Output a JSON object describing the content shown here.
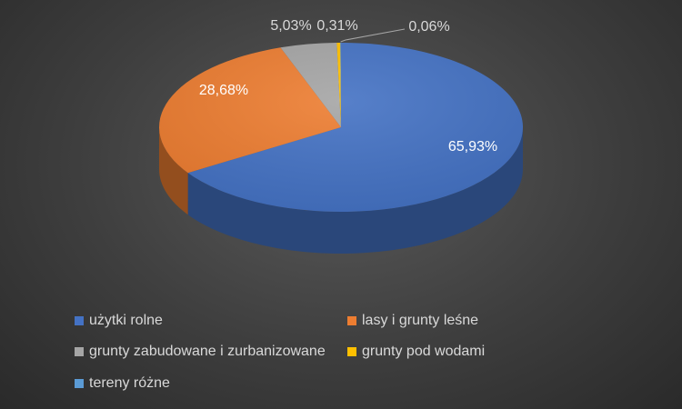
{
  "chart_data": {
    "type": "pie",
    "categories": [
      "użytki rolne",
      "lasy i grunty leśne",
      "grunty zabudowane i zurbanizowane",
      "grunty pod wodami",
      "tereny różne"
    ],
    "values": [
      65.93,
      28.68,
      5.03,
      0.31,
      0.06
    ],
    "labels": [
      "65,93%",
      "28,68%",
      "5,03%",
      "0,31%",
      "0,06%"
    ],
    "colors": [
      "#4472c4",
      "#ed7d31",
      "#a5a5a5",
      "#ffc000",
      "#5b9bd5"
    ],
    "legend_position": "bottom",
    "three_d": true
  }
}
